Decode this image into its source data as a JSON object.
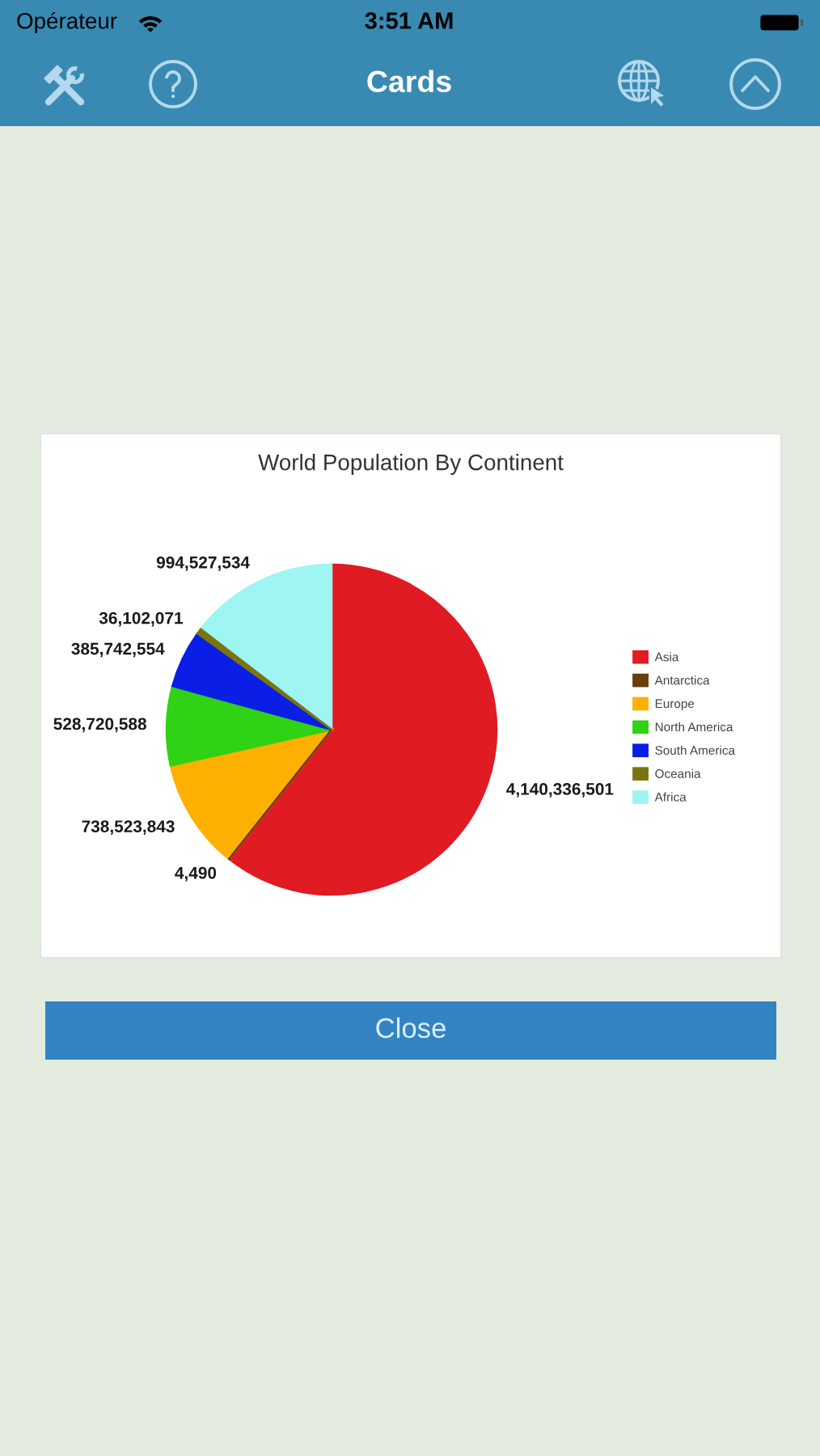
{
  "chart_data": {
    "type": "pie",
    "title": "World Population By Continent",
    "categories": [
      "Asia",
      "Antarctica",
      "Europe",
      "North America",
      "South America",
      "Oceania",
      "Africa"
    ],
    "values": [
      4140336501,
      4490,
      738523843,
      528720588,
      385742554,
      36102071,
      994527534
    ],
    "colors": [
      "#e01b24",
      "#6b3c0c",
      "#ffb000",
      "#2fd214",
      "#0a1ee6",
      "#7a7410",
      "#9ef5f2"
    ],
    "value_labels": [
      "4,140,336,501",
      "4,490",
      "738,523,843",
      "528,720,588",
      "385,742,554",
      "36,102,071",
      "994,527,534"
    ],
    "legend": "right",
    "annotations": [
      "Opérateur",
      "3:51 AM",
      "Cards",
      "Close"
    ]
  }
}
